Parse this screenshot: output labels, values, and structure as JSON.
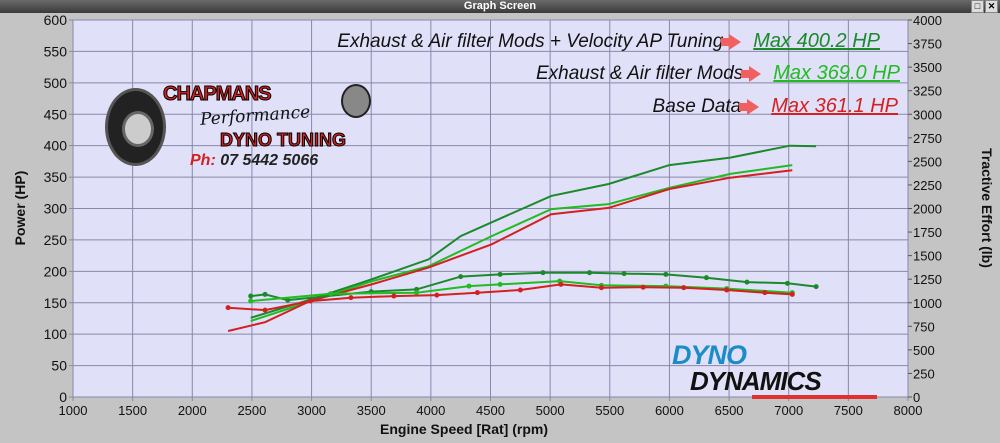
{
  "window": {
    "title": "Graph Screen",
    "restore_icon": "restore-icon",
    "close_icon": "close-icon"
  },
  "legend": [
    {
      "label": "Exhaust  & Air filter Mods + Velocity AP Tuning",
      "max": "Max 400.2 HP",
      "color": "#1a8a2a"
    },
    {
      "label": "Exhaust  & Air filter Mods",
      "max": "Max 369.0 HP",
      "color": "#22bb22"
    },
    {
      "label": "Base Data",
      "max": "Max 361.1 HP",
      "color": "#d42020"
    }
  ],
  "logos": {
    "chapmans": {
      "line1": "CHAPMANS",
      "line2": "Performance",
      "line3": "DYNO TUNING",
      "phone_prefix": "Ph:",
      "phone": "07 5442 5066"
    },
    "dynodynamics": {
      "line1": "DYNO",
      "line2": "DYNAMICS"
    }
  },
  "chart_data": {
    "type": "line",
    "xlabel": "Engine Speed [Rat] (rpm)",
    "ylabel": "Power (HP)",
    "y2label": "Tractive Effort (lb)",
    "xlim": [
      1000,
      8000
    ],
    "ylim": [
      0,
      600
    ],
    "y2lim": [
      0,
      4000
    ],
    "xticks": [
      1000,
      1500,
      2000,
      2500,
      3000,
      3500,
      4000,
      4500,
      5000,
      5500,
      6000,
      6500,
      7000,
      7500,
      8000
    ],
    "yticks": [
      0,
      50,
      100,
      150,
      200,
      250,
      300,
      350,
      400,
      450,
      500,
      550,
      600
    ],
    "y2ticks": [
      0,
      250,
      500,
      750,
      1000,
      1250,
      1500,
      1750,
      2000,
      2250,
      2500,
      2750,
      3000,
      3250,
      3500,
      3750,
      4000
    ],
    "grid": true,
    "background": "#e0e0f8",
    "series": [
      {
        "name": "Exhaust  & Air filter Mods + Velocity AP Tuning",
        "axis": "power",
        "color": "#1a8a2a",
        "x": [
          2490,
          2990,
          3500,
          3980,
          4250,
          4510,
          5010,
          5490,
          6000,
          6510,
          7010,
          7230
        ],
        "y": [
          126,
          155,
          187,
          219,
          256,
          278,
          320,
          339,
          369,
          381,
          400,
          399
        ]
      },
      {
        "name": "Exhaust  & Air filter Mods",
        "axis": "power",
        "color": "#22bb22",
        "x": [
          2490,
          2990,
          3500,
          3980,
          4510,
          5010,
          5490,
          6000,
          6510,
          7030
        ],
        "y": [
          121,
          152,
          184,
          208,
          256,
          299,
          307,
          333,
          355,
          369
        ]
      },
      {
        "name": "Base Data",
        "axis": "power",
        "color": "#d42020",
        "x": [
          2300,
          2610,
          2990,
          3500,
          3980,
          4510,
          5010,
          5490,
          6000,
          6510,
          7030
        ],
        "y": [
          105,
          119,
          153,
          179,
          206,
          243,
          291,
          301,
          331,
          349,
          361
        ]
      },
      {
        "name": "Exhaust  & Air filter Mods + Velocity AP Tuning",
        "axis": "tractive",
        "color": "#1a8a2a",
        "x": [
          2490,
          2610,
          2800,
          3500,
          3880,
          4250,
          4580,
          4940,
          5330,
          5620,
          5970,
          6310,
          6650,
          6990,
          7230
        ],
        "y": [
          1071,
          1089,
          1028,
          1118,
          1142,
          1277,
          1301,
          1319,
          1319,
          1309,
          1301,
          1266,
          1219,
          1206,
          1171
        ]
      },
      {
        "name": "Exhaust  & Air filter Mods",
        "axis": "tractive",
        "color": "#22bb22",
        "x": [
          2490,
          3160,
          3880,
          4320,
          4580,
          5080,
          5430,
          5970,
          6480,
          7030
        ],
        "y": [
          1018,
          1096,
          1107,
          1177,
          1195,
          1230,
          1185,
          1177,
          1150,
          1107
        ]
      },
      {
        "name": "Base Data",
        "axis": "tractive",
        "color": "#d42020",
        "x": [
          2300,
          2610,
          2990,
          3330,
          3690,
          4050,
          4390,
          4750,
          5090,
          5430,
          5780,
          6120,
          6480,
          6800,
          7030
        ],
        "y": [
          948,
          922,
          1018,
          1054,
          1071,
          1081,
          1107,
          1135,
          1195,
          1160,
          1165,
          1160,
          1135,
          1107,
          1089
        ]
      }
    ]
  }
}
